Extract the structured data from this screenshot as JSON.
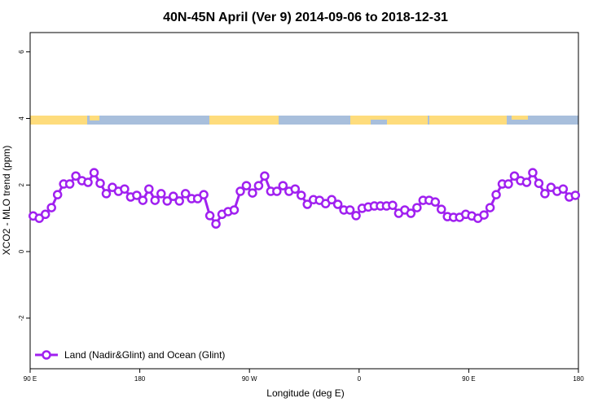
{
  "chart_data": {
    "type": "line",
    "title": "40N-45N April (Ver 9)   2014-09-06 to 2018-12-31",
    "x_label": "Longitude (deg E)",
    "y_label": "XCO2 - MLO trend (ppm)",
    "x": [
      92.5,
      97.5,
      102.5,
      107.5,
      112.5,
      117.5,
      122.5,
      127.5,
      132.5,
      137.5,
      142.5,
      147.5,
      152.5,
      157.5,
      162.5,
      167.5,
      172.5,
      177.5,
      182.5,
      187.5,
      192.5,
      197.5,
      202.5,
      207.5,
      212.5,
      217.5,
      222.5,
      227.5,
      232.5,
      237.5,
      242.5,
      247.5,
      252.5,
      257.5,
      262.5,
      267.5,
      272.5,
      277.5,
      282.5,
      287.5,
      292.5,
      297.5,
      302.5,
      307.5,
      312.5,
      317.5,
      322.5,
      327.5,
      332.5,
      337.5,
      342.5,
      347.5,
      352.5,
      357.5,
      362.5,
      367.5,
      372.5,
      377.5,
      382.5,
      387.5,
      392.5,
      397.5,
      402.5,
      407.5,
      412.5,
      417.5,
      422.5,
      427.5,
      432.5,
      437.5,
      442.5,
      447.5,
      452.5,
      457.5,
      462.5,
      467.5,
      472.5,
      477.5,
      482.5,
      487.5,
      492.5,
      497.5,
      502.5,
      507.5,
      512.5,
      517.5,
      522.5,
      527.5,
      532.5,
      537.5
    ],
    "series": [
      {
        "name": "Land (Nadir&Glint) and Ocean (Glint)",
        "color": "#a020f0",
        "values": [
          1.07,
          1.0,
          1.12,
          1.32,
          1.71,
          2.03,
          2.03,
          2.27,
          2.13,
          2.08,
          2.37,
          2.05,
          1.74,
          1.93,
          1.81,
          1.88,
          1.64,
          1.69,
          1.54,
          1.88,
          1.54,
          1.74,
          1.52,
          1.66,
          1.52,
          1.74,
          1.59,
          1.59,
          1.71,
          1.08,
          0.83,
          1.12,
          1.2,
          1.25,
          1.81,
          1.98,
          1.76,
          1.98,
          2.27,
          1.81,
          1.81,
          1.98,
          1.81,
          1.88,
          1.69,
          1.42,
          1.56,
          1.54,
          1.44,
          1.56,
          1.42,
          1.25,
          1.25,
          1.08,
          1.3,
          1.34,
          1.37,
          1.37,
          1.37,
          1.39,
          1.15,
          1.25,
          1.15,
          1.32,
          1.54,
          1.54,
          1.49,
          1.27,
          1.05,
          1.03,
          1.03,
          1.12,
          1.07,
          1.0,
          1.1,
          1.32,
          1.71,
          2.03,
          2.03,
          2.27,
          2.13,
          2.08,
          2.37,
          2.05,
          1.74,
          1.93,
          1.81,
          1.88,
          1.64,
          1.69
        ]
      }
    ],
    "xlim": [
      90,
      540
    ],
    "xticks": [
      {
        "value": 90,
        "label": "90 E"
      },
      180,
      {
        "value": 270,
        "label": "90 W"
      },
      {
        "value": 360,
        "label": "0"
      },
      {
        "value": 450,
        "label": "90 E"
      },
      {
        "value": 540,
        "label": "180"
      }
    ],
    "ylim": [
      -3.52,
      6.58
    ],
    "yticks": [
      -2,
      0,
      2,
      4,
      6
    ],
    "legend": "bottom-left"
  }
}
